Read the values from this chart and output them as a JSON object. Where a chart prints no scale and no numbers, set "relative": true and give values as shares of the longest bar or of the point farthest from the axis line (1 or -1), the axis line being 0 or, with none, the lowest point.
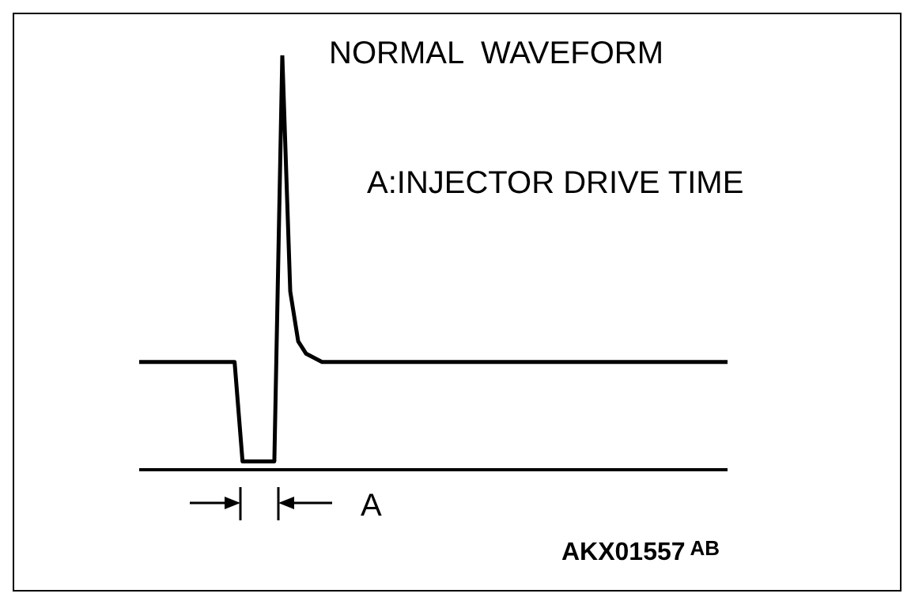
{
  "chart_data": {
    "type": "line",
    "relative": true,
    "title": "NORMAL  WAVEFORM",
    "categories": [
      null,
      null,
      null,
      null,
      null,
      null,
      null,
      null,
      null,
      null,
      null,
      null,
      null,
      null,
      null,
      null,
      null,
      null,
      null,
      null,
      null,
      null,
      null,
      null,
      null,
      null,
      null,
      null,
      null,
      null,
      null,
      null,
      null,
      null,
      null,
      null,
      null,
      null,
      null,
      null,
      null,
      null,
      null,
      null,
      null,
      null,
      null,
      null,
      null,
      null,
      null,
      null,
      null,
      null,
      null,
      null,
      null,
      null,
      null,
      null,
      null,
      null,
      null,
      null,
      null,
      null,
      null,
      null,
      null,
      null,
      null,
      null,
      null,
      null,
      null
    ],
    "series": [
      {
        "color": "#000000",
        "values": [
          0.26,
          0.26,
          0.26,
          0.26,
          0.26,
          0.26,
          0.26,
          0.26,
          0.26,
          0.26,
          0.26,
          0.26,
          0.26,
          0.02,
          0.02,
          0.02,
          0.02,
          0.02,
          1,
          0.43,
          0.31,
          0.28,
          0.27,
          0.26,
          0.26,
          0.26,
          0.26,
          0.26,
          0.26,
          0.26,
          0.26,
          0.26,
          0.26,
          0.26,
          0.26,
          0.26,
          0.26,
          0.26,
          0.26,
          0.26,
          0.26,
          0.26,
          0.26,
          0.26,
          0.26,
          0.26,
          0.26,
          0.26,
          0.26,
          0.26,
          0.26,
          0.26,
          0.26,
          0.26,
          0.26,
          0.26,
          0.26,
          0.26,
          0.26,
          0.26,
          0.26,
          0.26,
          0.26,
          0.26,
          0.26,
          0.26,
          0.26,
          0.26,
          0.26,
          0.26,
          0.26,
          0.26,
          0.26,
          0.26,
          0.26
        ]
      }
    ],
    "marker": "none",
    "grid": false,
    "legend": false,
    "annotations": [
      "A:INJECTOR DRIVE TIME",
      "A",
      "AKX01557$^{AB}$"
    ]
  }
}
